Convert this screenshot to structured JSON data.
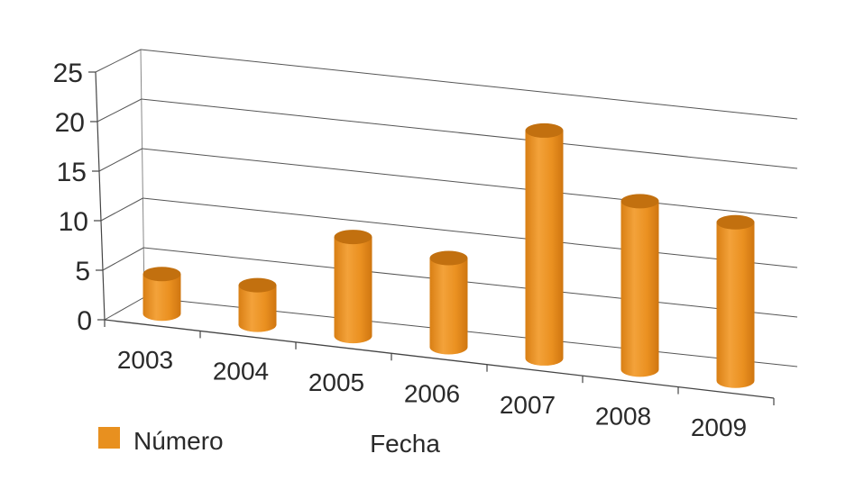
{
  "chart_data": {
    "type": "bar",
    "categories": [
      "2003",
      "2004",
      "2005",
      "2006",
      "2007",
      "2008",
      "2009"
    ],
    "series": [
      {
        "name": "Número",
        "values": [
          4,
          4,
          10,
          9,
          23,
          17,
          16
        ],
        "color": "#e8901f"
      }
    ],
    "xlabel": "Fecha",
    "ylabel": "",
    "ylim": [
      0,
      25
    ],
    "yticks": [
      "0",
      "5",
      "10",
      "15",
      "20",
      "25"
    ],
    "grid": true,
    "legend_position": "bottom-left",
    "style": "3d-cylinder"
  }
}
